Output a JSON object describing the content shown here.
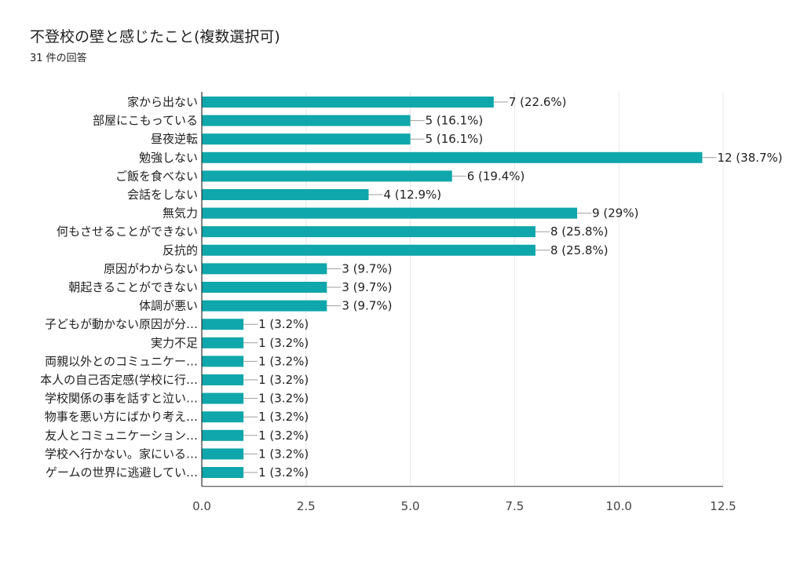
{
  "title": "不登校の壁と感じたこと(複数選択可)",
  "subtitle": "31 件の回答",
  "colors": {
    "bar": "#0FA7AB",
    "grid": "#E8E8E8",
    "axis": "#333333",
    "leader": "#9E9E9E"
  },
  "chart_data": {
    "type": "bar",
    "orientation": "horizontal",
    "title": "不登校の壁と感じたこと(複数選択可)",
    "subtitle": "31 件の回答",
    "xlim": [
      0,
      12.5
    ],
    "xticks": [
      "0.0",
      "2.5",
      "5.0",
      "7.5",
      "10.0",
      "12.5"
    ],
    "xtick_values": [
      0,
      2.5,
      5,
      7.5,
      10,
      12.5
    ],
    "grid": true,
    "categories": [
      "家から出ない",
      "部屋にこもっている",
      "昼夜逆転",
      "勉強しない",
      "ご飯を食べない",
      "会話をしない",
      "無気力",
      "何もさせることができない",
      "反抗的",
      "原因がわからない",
      "朝起きることができない",
      "体調が悪い",
      "子どもが動かない原因が分…",
      "実力不足",
      "両親以外とのコミュニケー…",
      "本人の自己否定感(学校に行…",
      "学校関係の事を話すと泣い…",
      "物事を悪い方にばかり考え…",
      "友人とコミュニケーション…",
      "学校へ行かない。家にいる…",
      "ゲームの世界に逃避してい…"
    ],
    "values": [
      7,
      5,
      5,
      12,
      6,
      4,
      9,
      8,
      8,
      3,
      3,
      3,
      1,
      1,
      1,
      1,
      1,
      1,
      1,
      1,
      1
    ],
    "data_labels": [
      "7 (22.6%)",
      "5 (16.1%)",
      "5 (16.1%)",
      "12 (38.7%)",
      "6 (19.4%)",
      "4 (12.9%)",
      "9 (29%)",
      "8 (25.8%)",
      "8 (25.8%)",
      "3 (9.7%)",
      "3 (9.7%)",
      "3 (9.7%)",
      "1 (3.2%)",
      "1 (3.2%)",
      "1 (3.2%)",
      "1 (3.2%)",
      "1 (3.2%)",
      "1 (3.2%)",
      "1 (3.2%)",
      "1 (3.2%)",
      "1 (3.2%)"
    ]
  }
}
